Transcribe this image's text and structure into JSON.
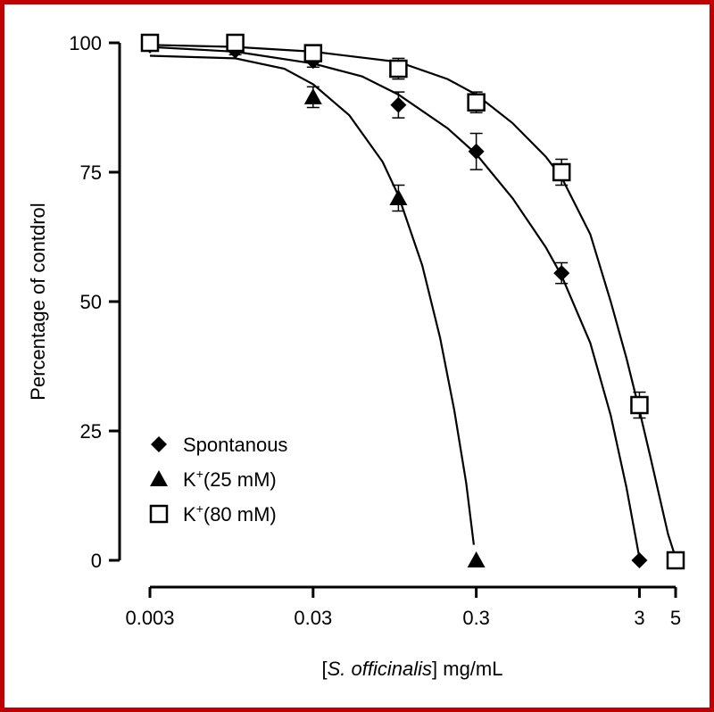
{
  "chart_data": {
    "type": "scatter",
    "x_scale": "log",
    "x_ticks": [
      {
        "value": 0.003,
        "label": "0.003"
      },
      {
        "value": 0.03,
        "label": "0.03"
      },
      {
        "value": 0.3,
        "label": "0.3"
      },
      {
        "value": 3,
        "label": "3"
      },
      {
        "value": 5,
        "label": "5"
      }
    ],
    "y_ticks": [
      {
        "value": 0,
        "label": "0"
      },
      {
        "value": 25,
        "label": "25"
      },
      {
        "value": 50,
        "label": "50"
      },
      {
        "value": 75,
        "label": "75"
      },
      {
        "value": 100,
        "label": "100"
      }
    ],
    "xlim": [
      0.003,
      5
    ],
    "ylim": [
      0,
      100
    ],
    "ylabel": "Percentage of contdrol",
    "xlabel_prefix": "[",
    "xlabel_italic": "S. officinalis",
    "xlabel_suffix": "] mg/mL",
    "legend_position": "lower-left",
    "series": [
      {
        "name": "Spontanous",
        "label_parts": [
          "Spontanous"
        ],
        "marker": "diamond",
        "color": "#000000",
        "points": [
          {
            "x": 0.003,
            "y": 99.5,
            "err": 0.5
          },
          {
            "x": 0.01,
            "y": 98.5,
            "err": 0.8
          },
          {
            "x": 0.03,
            "y": 96.5,
            "err": 1.2
          },
          {
            "x": 0.1,
            "y": 88,
            "err": 2.5
          },
          {
            "x": 0.3,
            "y": 79,
            "err": 3.5
          },
          {
            "x": 1,
            "y": 55.5,
            "err": 2.0
          },
          {
            "x": 3,
            "y": 0,
            "err": 0
          }
        ],
        "fit": [
          {
            "x": 0.003,
            "y": 99.2
          },
          {
            "x": 0.01,
            "y": 98.3
          },
          {
            "x": 0.03,
            "y": 96.0
          },
          {
            "x": 0.06,
            "y": 93.5
          },
          {
            "x": 0.1,
            "y": 90.0
          },
          {
            "x": 0.2,
            "y": 83.5
          },
          {
            "x": 0.3,
            "y": 78.5
          },
          {
            "x": 0.5,
            "y": 70.0
          },
          {
            "x": 0.8,
            "y": 60.5
          },
          {
            "x": 1.0,
            "y": 55.0
          },
          {
            "x": 1.5,
            "y": 42.0
          },
          {
            "x": 2.0,
            "y": 28.0
          },
          {
            "x": 2.5,
            "y": 14.0
          },
          {
            "x": 3.0,
            "y": 0.5
          }
        ]
      },
      {
        "name": "K+(25 mM)",
        "label_parts": [
          "K",
          "+",
          "(25 mM)"
        ],
        "marker": "triangle",
        "color": "#000000",
        "points": [
          {
            "x": 0.003,
            "y": 100,
            "err": 0.5
          },
          {
            "x": 0.03,
            "y": 89.5,
            "err": 2.0
          },
          {
            "x": 0.1,
            "y": 70,
            "err": 2.5
          },
          {
            "x": 0.3,
            "y": 0,
            "err": 0
          }
        ],
        "fit": [
          {
            "x": 0.003,
            "y": 97.5
          },
          {
            "x": 0.01,
            "y": 97.0
          },
          {
            "x": 0.02,
            "y": 95.0
          },
          {
            "x": 0.03,
            "y": 92.0
          },
          {
            "x": 0.05,
            "y": 86.0
          },
          {
            "x": 0.08,
            "y": 77.0
          },
          {
            "x": 0.1,
            "y": 70.5
          },
          {
            "x": 0.14,
            "y": 57.0
          },
          {
            "x": 0.18,
            "y": 43.0
          },
          {
            "x": 0.22,
            "y": 29.0
          },
          {
            "x": 0.26,
            "y": 15.0
          },
          {
            "x": 0.29,
            "y": 3.0
          }
        ]
      },
      {
        "name": "K+(80 mM)",
        "label_parts": [
          "K",
          "+",
          "(80 mM)"
        ],
        "marker": "square-open",
        "color": "#000000",
        "points": [
          {
            "x": 0.003,
            "y": 100,
            "err": 0.5
          },
          {
            "x": 0.01,
            "y": 100,
            "err": 0.5
          },
          {
            "x": 0.03,
            "y": 98,
            "err": 1.0
          },
          {
            "x": 0.1,
            "y": 95,
            "err": 2.0
          },
          {
            "x": 0.3,
            "y": 88.5,
            "err": 2.0
          },
          {
            "x": 1,
            "y": 75,
            "err": 2.5
          },
          {
            "x": 3,
            "y": 30,
            "err": 2.5
          },
          {
            "x": 5,
            "y": 0,
            "err": 0
          }
        ],
        "fit": [
          {
            "x": 0.003,
            "y": 99.6
          },
          {
            "x": 0.01,
            "y": 99.2
          },
          {
            "x": 0.03,
            "y": 98.3
          },
          {
            "x": 0.1,
            "y": 96.3
          },
          {
            "x": 0.2,
            "y": 93.0
          },
          {
            "x": 0.3,
            "y": 90.0
          },
          {
            "x": 0.5,
            "y": 84.5
          },
          {
            "x": 0.8,
            "y": 78.0
          },
          {
            "x": 1.0,
            "y": 74.0
          },
          {
            "x": 1.5,
            "y": 63.0
          },
          {
            "x": 2.0,
            "y": 50.0
          },
          {
            "x": 2.5,
            "y": 39.0
          },
          {
            "x": 3.0,
            "y": 29.0
          },
          {
            "x": 3.5,
            "y": 20.0
          },
          {
            "x": 4.0,
            "y": 12.0
          },
          {
            "x": 4.5,
            "y": 5.0
          },
          {
            "x": 5.0,
            "y": 0.5
          }
        ]
      }
    ]
  }
}
